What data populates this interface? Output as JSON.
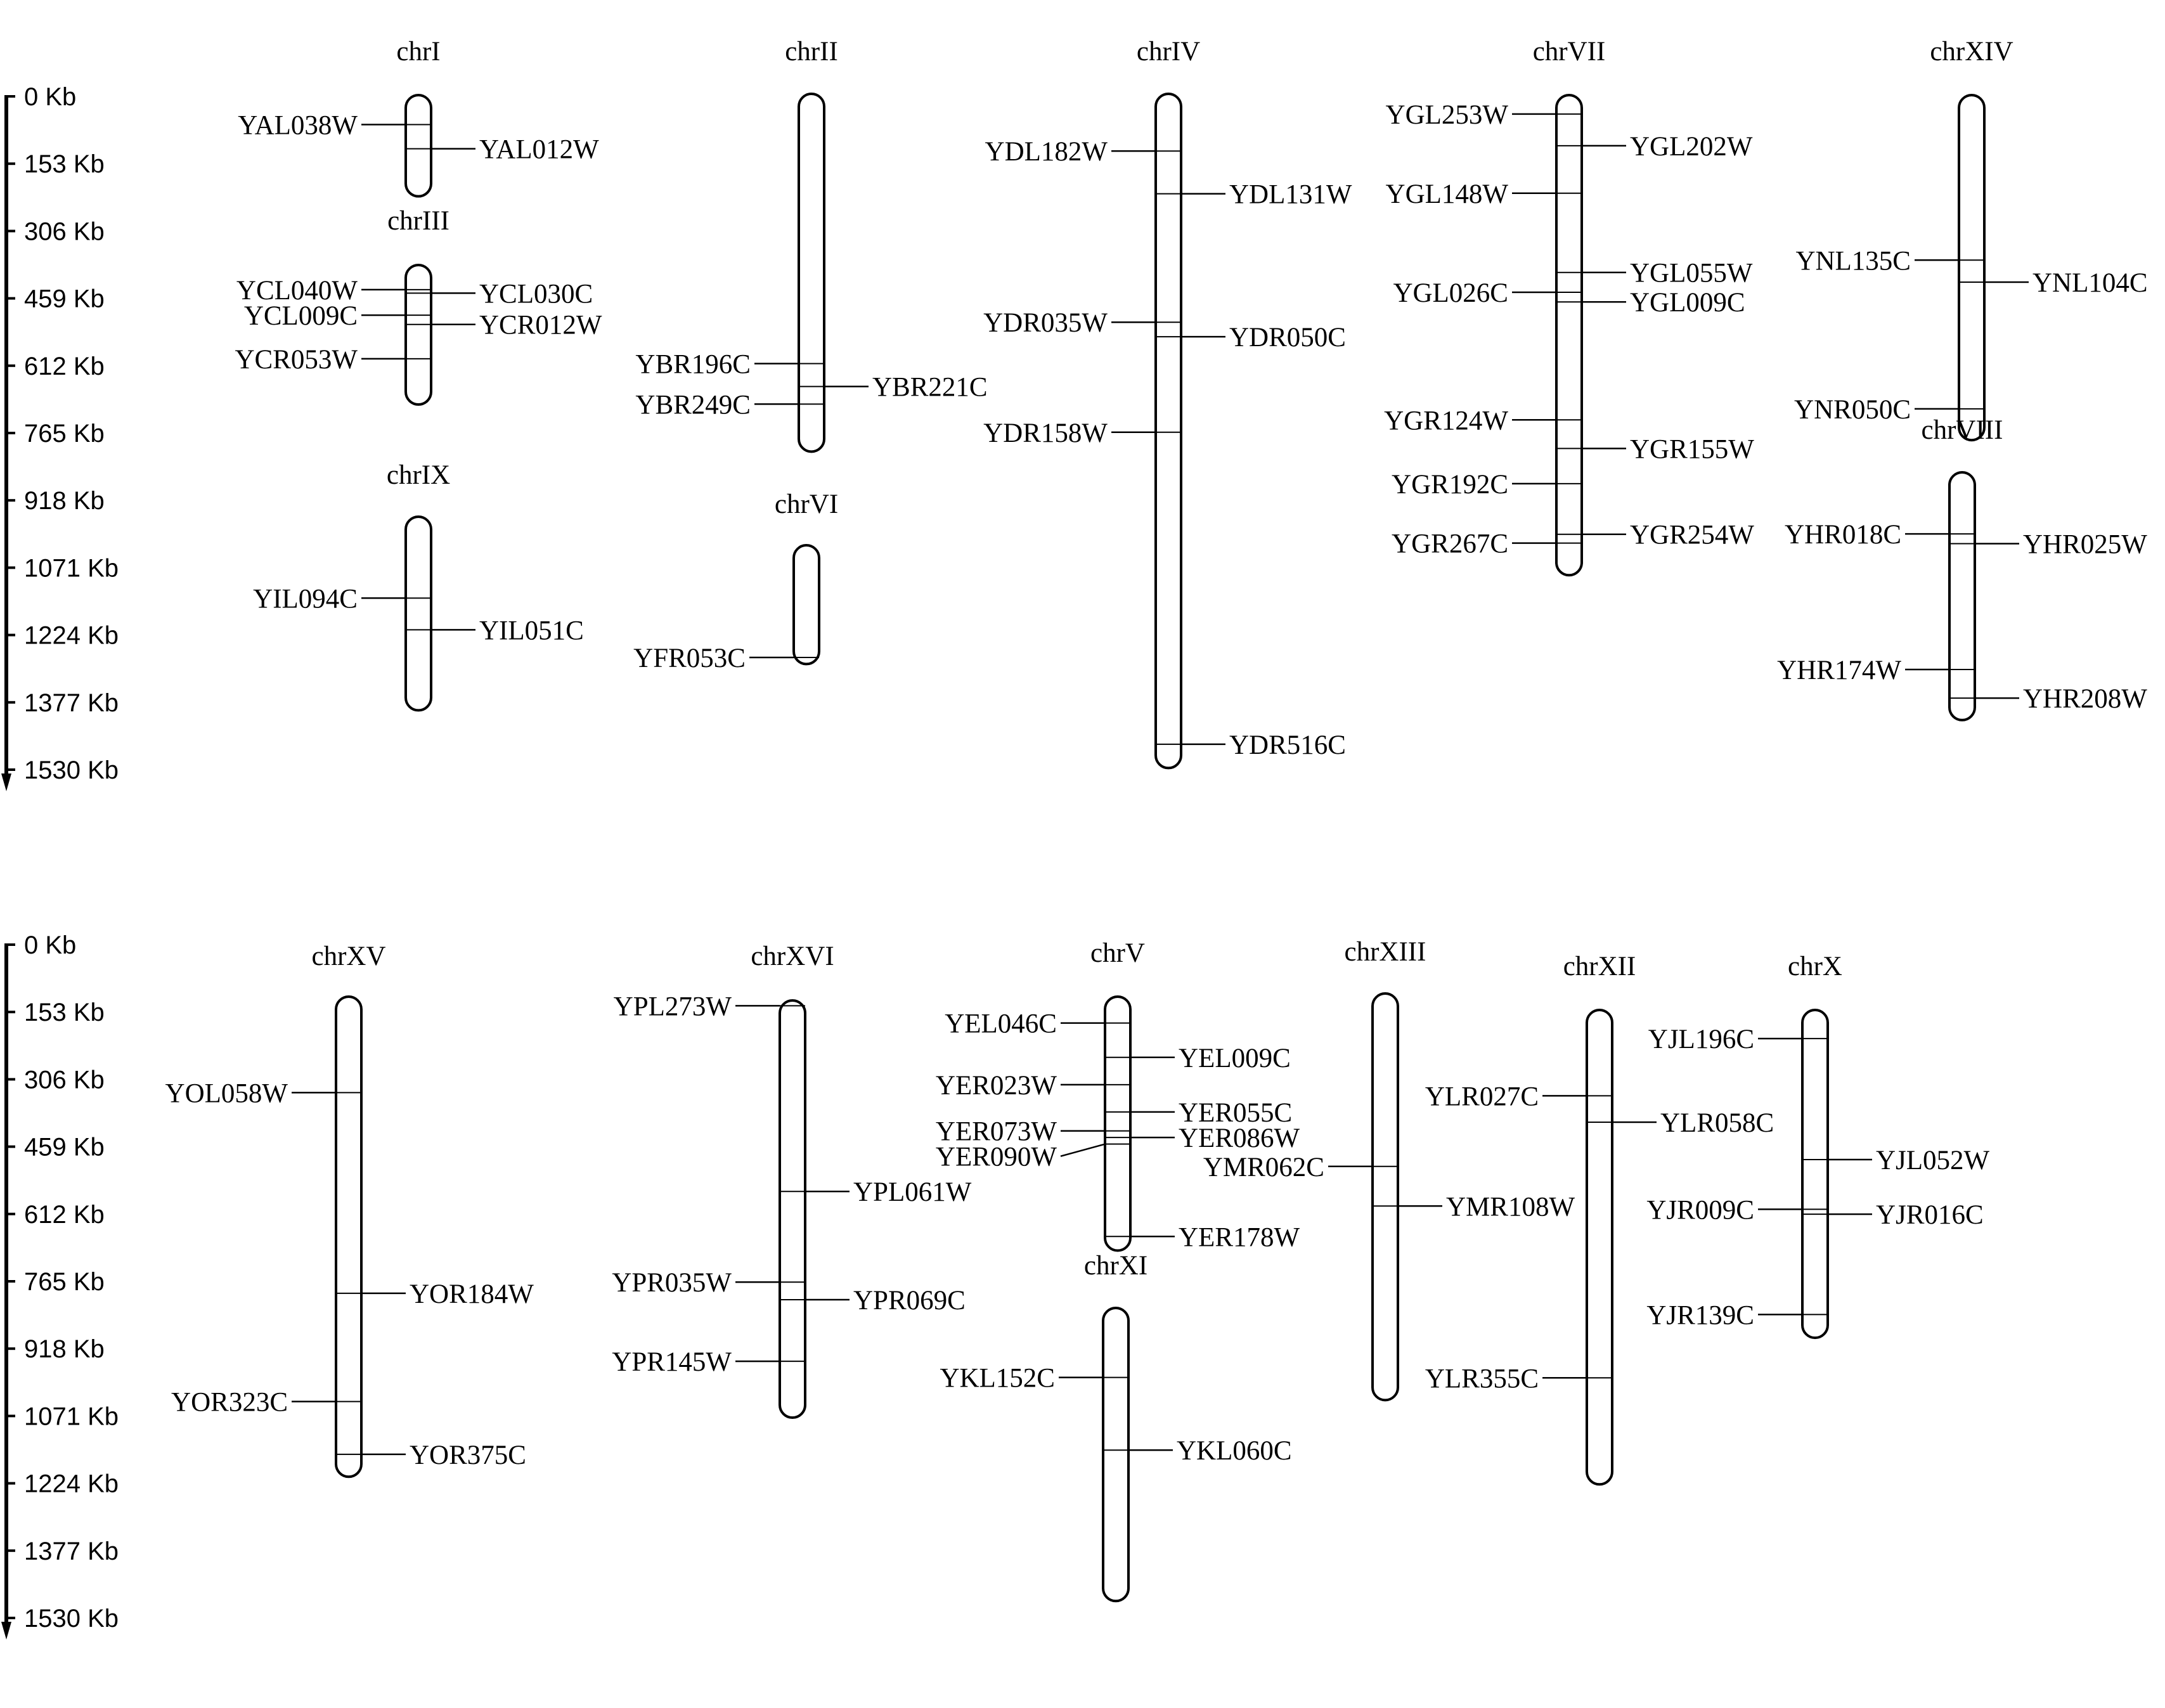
{
  "scale": {
    "unit": "Kb",
    "ticks": [
      "0 Kb",
      "153 Kb",
      "306 Kb",
      "459 Kb",
      "612 Kb",
      "765 Kb",
      "918 Kb",
      "1071 Kb",
      "1224 Kb",
      "1377 Kb",
      "1530 Kb"
    ],
    "tick_values": [
      0,
      153,
      306,
      459,
      612,
      765,
      918,
      1071,
      1224,
      1377,
      1530
    ]
  },
  "panels": [
    {
      "chromosomes": [
        {
          "name": "chrI",
          "length": 230,
          "genes": [
            {
              "id": "YAL038W",
              "pos": 67,
              "side": "left"
            },
            {
              "id": "YAL012W",
              "pos": 122,
              "side": "right"
            }
          ]
        },
        {
          "name": "chrIII",
          "length": 317,
          "genes": [
            {
              "id": "YCL040W",
              "pos": 56,
              "side": "left"
            },
            {
              "id": "YCL030C",
              "pos": 64,
              "side": "right"
            },
            {
              "id": "YCL009C",
              "pos": 114,
              "side": "left"
            },
            {
              "id": "YCR012W",
              "pos": 135,
              "side": "right"
            },
            {
              "id": "YCR053W",
              "pos": 213,
              "side": "left"
            }
          ]
        },
        {
          "name": "chrIX",
          "length": 440,
          "genes": [
            {
              "id": "YIL094C",
              "pos": 185,
              "side": "left"
            },
            {
              "id": "YIL051C",
              "pos": 257,
              "side": "right"
            }
          ]
        },
        {
          "name": "chrII",
          "length": 813,
          "genes": [
            {
              "id": "YBR196C",
              "pos": 613,
              "side": "left"
            },
            {
              "id": "YBR221C",
              "pos": 665,
              "side": "right"
            },
            {
              "id": "YBR249C",
              "pos": 705,
              "side": "left"
            }
          ]
        },
        {
          "name": "chrVI",
          "length": 270,
          "genes": [
            {
              "id": "YFR053C",
              "pos": 255,
              "side": "left"
            }
          ]
        },
        {
          "name": "chrIV",
          "length": 1532,
          "genes": [
            {
              "id": "YDL182W",
              "pos": 130,
              "side": "left"
            },
            {
              "id": "YDL131W",
              "pos": 227,
              "side": "right"
            },
            {
              "id": "YDR035W",
              "pos": 519,
              "side": "left"
            },
            {
              "id": "YDR050C",
              "pos": 552,
              "side": "right"
            },
            {
              "id": "YDR158W",
              "pos": 769,
              "side": "left"
            },
            {
              "id": "YDR516C",
              "pos": 1478,
              "side": "right"
            }
          ]
        },
        {
          "name": "chrVII",
          "length": 1091,
          "genes": [
            {
              "id": "YGL253W",
              "pos": 43,
              "side": "left"
            },
            {
              "id": "YGL202W",
              "pos": 115,
              "side": "right"
            },
            {
              "id": "YGL148W",
              "pos": 223,
              "side": "left"
            },
            {
              "id": "YGL055W",
              "pos": 403,
              "side": "right"
            },
            {
              "id": "YGL026C",
              "pos": 448,
              "side": "left"
            },
            {
              "id": "YGL009C",
              "pos": 470,
              "side": "right"
            },
            {
              "id": "YGR124W",
              "pos": 738,
              "side": "left"
            },
            {
              "id": "YGR155W",
              "pos": 803,
              "side": "right"
            },
            {
              "id": "YGR192C",
              "pos": 883,
              "side": "left"
            },
            {
              "id": "YGR254W",
              "pos": 998,
              "side": "right"
            },
            {
              "id": "YGR267C",
              "pos": 1018,
              "side": "left"
            }
          ]
        },
        {
          "name": "chrXIV",
          "length": 784,
          "genes": [
            {
              "id": "YNL135C",
              "pos": 375,
              "side": "left"
            },
            {
              "id": "YNL104C",
              "pos": 425,
              "side": "right"
            },
            {
              "id": "YNR050C",
              "pos": 713,
              "side": "left"
            }
          ]
        },
        {
          "name": "chrVIII",
          "length": 563,
          "genes": [
            {
              "id": "YHR018C",
              "pos": 140,
              "side": "left"
            },
            {
              "id": "YHR025W",
              "pos": 162,
              "side": "right"
            },
            {
              "id": "YHR174W",
              "pos": 448,
              "side": "left"
            },
            {
              "id": "YHR208W",
              "pos": 513,
              "side": "right"
            }
          ]
        }
      ]
    },
    {
      "chromosomes": [
        {
          "name": "chrXV",
          "length": 1091,
          "genes": [
            {
              "id": "YOL058W",
              "pos": 218,
              "side": "left"
            },
            {
              "id": "YOR184W",
              "pos": 674,
              "side": "right"
            },
            {
              "id": "YOR323C",
              "pos": 920,
              "side": "left"
            },
            {
              "id": "YOR375C",
              "pos": 1040,
              "side": "right"
            }
          ]
        },
        {
          "name": "chrXVI",
          "length": 948,
          "genes": [
            {
              "id": "YPL273W",
              "pos": 12,
              "side": "left"
            },
            {
              "id": "YPL061W",
              "pos": 434,
              "side": "right"
            },
            {
              "id": "YPR035W",
              "pos": 640,
              "side": "left"
            },
            {
              "id": "YPR069C",
              "pos": 680,
              "side": "right"
            },
            {
              "id": "YPR145W",
              "pos": 820,
              "side": "left"
            }
          ]
        },
        {
          "name": "chrV",
          "length": 577,
          "genes": [
            {
              "id": "YEL046C",
              "pos": 60,
              "side": "left"
            },
            {
              "id": "YEL009C",
              "pos": 138,
              "side": "right"
            },
            {
              "id": "YER023W",
              "pos": 200,
              "side": "left"
            },
            {
              "id": "YER055C",
              "pos": 262,
              "side": "right"
            },
            {
              "id": "YER073W",
              "pos": 305,
              "side": "left"
            },
            {
              "id": "YER086W",
              "pos": 320,
              "side": "right"
            },
            {
              "id": "YER090W",
              "pos": 335,
              "side": "left"
            },
            {
              "id": "YER178W",
              "pos": 545,
              "side": "right"
            }
          ]
        },
        {
          "name": "chrXI",
          "length": 666,
          "genes": [
            {
              "id": "YKL152C",
              "pos": 158,
              "side": "left"
            },
            {
              "id": "YKL060C",
              "pos": 323,
              "side": "right"
            }
          ]
        },
        {
          "name": "chrXIII",
          "length": 924,
          "genes": [
            {
              "id": "YMR062C",
              "pos": 393,
              "side": "left"
            },
            {
              "id": "YMR108W",
              "pos": 483,
              "side": "right"
            }
          ]
        },
        {
          "name": "chrXII",
          "length": 1078,
          "genes": [
            {
              "id": "YLR027C",
              "pos": 195,
              "side": "left"
            },
            {
              "id": "YLR058C",
              "pos": 255,
              "side": "right"
            },
            {
              "id": "YLR355C",
              "pos": 836,
              "side": "left"
            }
          ]
        },
        {
          "name": "chrX",
          "length": 745,
          "genes": [
            {
              "id": "YJL196C",
              "pos": 65,
              "side": "left"
            },
            {
              "id": "YJL052W",
              "pos": 340,
              "side": "right"
            },
            {
              "id": "YJR009C",
              "pos": 453,
              "side": "left"
            },
            {
              "id": "YJR016C",
              "pos": 464,
              "side": "right"
            },
            {
              "id": "YJR139C",
              "pos": 692,
              "side": "left"
            }
          ]
        }
      ]
    }
  ]
}
